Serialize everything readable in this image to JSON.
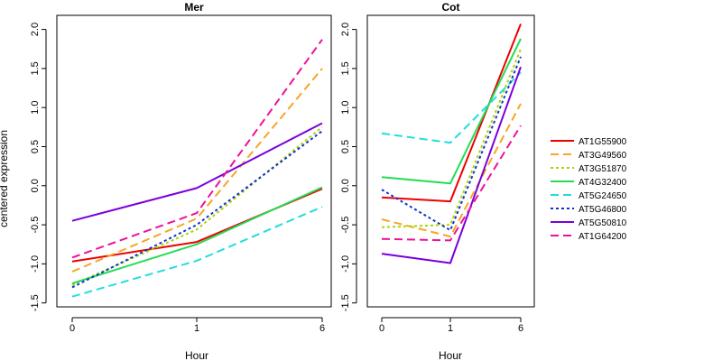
{
  "ylabel": "centered expression",
  "chart_data": [
    {
      "type": "line",
      "title": "Mer",
      "xlabel": "Hour",
      "ylabel": "centered expression",
      "x_ticks": [
        "0",
        "1",
        "6"
      ],
      "y_ticks": [
        -1.5,
        -1.0,
        -0.5,
        0.0,
        0.5,
        1.0,
        1.5,
        2.0
      ],
      "ylim": [
        -1.55,
        2.18
      ],
      "grid": false,
      "series": [
        {
          "name": "AT1G55900",
          "color": "#ee0000",
          "dash": "solid",
          "values": [
            -0.97,
            -0.72,
            -0.04
          ]
        },
        {
          "name": "AT3G49560",
          "color": "#f5a623",
          "dash": "dashed",
          "values": [
            -1.1,
            -0.42,
            1.5
          ]
        },
        {
          "name": "AT3G51870",
          "color": "#aad400",
          "dash": "dotted",
          "values": [
            -1.27,
            -0.56,
            0.75
          ]
        },
        {
          "name": "AT4G32400",
          "color": "#22dd55",
          "dash": "solid",
          "values": [
            -1.25,
            -0.75,
            -0.02
          ]
        },
        {
          "name": "AT5G24650",
          "color": "#22dddd",
          "dash": "dashed",
          "values": [
            -1.42,
            -0.96,
            -0.27
          ]
        },
        {
          "name": "AT5G46800",
          "color": "#1133cc",
          "dash": "dotted",
          "values": [
            -1.3,
            -0.5,
            0.7
          ]
        },
        {
          "name": "AT5G50810",
          "color": "#7a00dd",
          "dash": "solid",
          "values": [
            -0.45,
            -0.03,
            0.8
          ]
        },
        {
          "name": "AT1G64200",
          "color": "#ee1199",
          "dash": "dashed",
          "values": [
            -0.92,
            -0.35,
            1.87
          ]
        }
      ]
    },
    {
      "type": "line",
      "title": "Cot",
      "xlabel": "Hour",
      "x_ticks": [
        "0",
        "1",
        "6"
      ],
      "y_ticks": [
        -1.5,
        -1.0,
        -0.5,
        0.0,
        0.5,
        1.0,
        1.5,
        2.0
      ],
      "ylim": [
        -1.55,
        2.18
      ],
      "grid": false,
      "series": [
        {
          "name": "AT1G55900",
          "color": "#ee0000",
          "dash": "solid",
          "values": [
            -0.15,
            -0.2,
            2.07
          ]
        },
        {
          "name": "AT3G49560",
          "color": "#f5a623",
          "dash": "dashed",
          "values": [
            -0.43,
            -0.65,
            1.05
          ]
        },
        {
          "name": "AT3G51870",
          "color": "#aad400",
          "dash": "dotted",
          "values": [
            -0.53,
            -0.5,
            1.75
          ]
        },
        {
          "name": "AT4G32400",
          "color": "#22dd55",
          "dash": "solid",
          "values": [
            0.11,
            0.03,
            1.88
          ]
        },
        {
          "name": "AT5G24650",
          "color": "#22dddd",
          "dash": "dashed",
          "values": [
            0.67,
            0.55,
            1.45
          ]
        },
        {
          "name": "AT5G46800",
          "color": "#1133cc",
          "dash": "dotted",
          "values": [
            -0.05,
            -0.57,
            1.65
          ]
        },
        {
          "name": "AT5G50810",
          "color": "#7a00dd",
          "dash": "solid",
          "values": [
            -0.87,
            -0.99,
            1.52
          ]
        },
        {
          "name": "AT1G64200",
          "color": "#ee1199",
          "dash": "dashed",
          "values": [
            -0.68,
            -0.7,
            0.77
          ]
        }
      ]
    }
  ],
  "legend": {
    "placement": "right",
    "entries": [
      {
        "label": "AT1G55900",
        "color": "#ee0000",
        "dash": "solid"
      },
      {
        "label": "AT3G49560",
        "color": "#f5a623",
        "dash": "dashed"
      },
      {
        "label": "AT3G51870",
        "color": "#aad400",
        "dash": "dotted"
      },
      {
        "label": "AT4G32400",
        "color": "#22dd55",
        "dash": "solid"
      },
      {
        "label": "AT5G24650",
        "color": "#22dddd",
        "dash": "dashed"
      },
      {
        "label": "AT5G46800",
        "color": "#1133cc",
        "dash": "dotted"
      },
      {
        "label": "AT5G50810",
        "color": "#7a00dd",
        "dash": "solid"
      },
      {
        "label": "AT1G64200",
        "color": "#ee1199",
        "dash": "dashed"
      }
    ]
  }
}
